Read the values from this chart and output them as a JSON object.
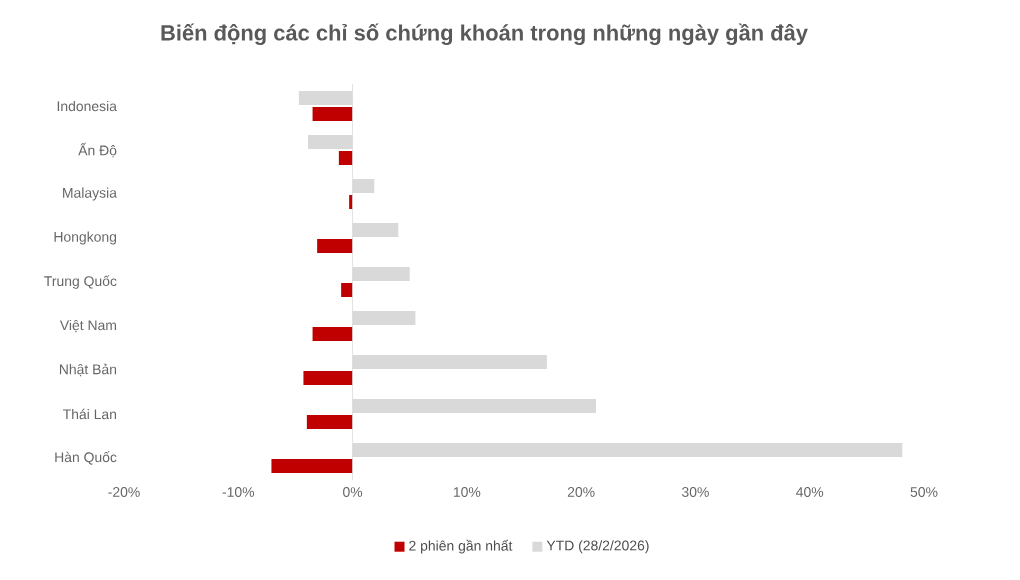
{
  "chart_data": {
    "type": "bar",
    "orientation": "horizontal",
    "title": "Biến động các chỉ số chứng khoán trong những ngày gần đây",
    "categories": [
      "Indonesia",
      "Ấn Độ",
      "Malaysia",
      "Hongkong",
      "Trung Quốc",
      "Việt Nam",
      "Nhật Bản",
      "Thái Lan",
      "Hàn Quốc"
    ],
    "series": [
      {
        "name": "2 phiên gần nhất",
        "color": "#c00000",
        "values": [
          -3.5,
          -1.2,
          -0.3,
          -3.1,
          -1.0,
          -3.5,
          -4.3,
          -4.0,
          -7.1
        ]
      },
      {
        "name": "YTD (28/2/2026)",
        "color": "#d9d9d9",
        "values": [
          -4.7,
          -3.9,
          1.9,
          4.0,
          5.0,
          5.5,
          17.0,
          21.3,
          48.1
        ]
      }
    ],
    "xlim": [
      -20,
      50
    ],
    "xticks": [
      {
        "value": -20,
        "label": "-20%"
      },
      {
        "value": -10,
        "label": "-10%"
      },
      {
        "value": 0,
        "label": "0%"
      },
      {
        "value": 10,
        "label": "10%"
      },
      {
        "value": 20,
        "label": "20%"
      },
      {
        "value": 30,
        "label": "30%"
      },
      {
        "value": 40,
        "label": "40%"
      },
      {
        "value": 50,
        "label": "50%"
      }
    ],
    "legend": "bottom"
  }
}
